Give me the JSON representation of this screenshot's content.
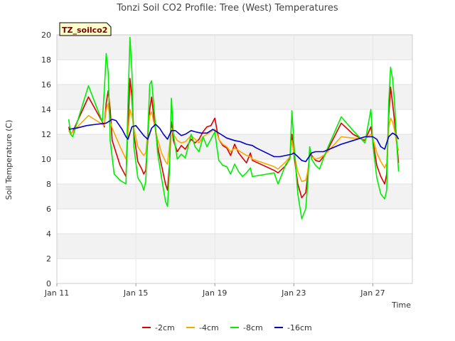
{
  "chart_data": {
    "type": "line",
    "title": "Tonzi Soil CO2 Profile: Tree (West) Temperatures",
    "xlabel": "Time",
    "ylabel": "Soil Temperature (C)",
    "ylim": [
      0,
      20
    ],
    "yticks": [
      0,
      2,
      4,
      6,
      8,
      10,
      12,
      14,
      16,
      18,
      20
    ],
    "xlim": [
      11,
      29
    ],
    "xticks": [
      {
        "value": 11,
        "label": "Jan 11"
      },
      {
        "value": 15,
        "label": "Jan 15"
      },
      {
        "value": 19,
        "label": "Jan 19"
      },
      {
        "value": 23,
        "label": "Jan 23"
      },
      {
        "value": 27,
        "label": "Jan 27"
      }
    ],
    "tag": "TZ_soilco2",
    "grid": "horizontal bands",
    "legend_position": "bottom",
    "series": [
      {
        "name": "-2cm",
        "color": "#dd0000",
        "points": [
          [
            11.6,
            12.6
          ],
          [
            11.7,
            12.0
          ],
          [
            11.8,
            12.2
          ],
          [
            12.6,
            15.0
          ],
          [
            13.3,
            13.0
          ],
          [
            13.4,
            12.6
          ],
          [
            13.5,
            14.5
          ],
          [
            13.6,
            15.5
          ],
          [
            13.7,
            14.0
          ],
          [
            13.8,
            11.5
          ],
          [
            14.2,
            9.5
          ],
          [
            14.5,
            8.6
          ],
          [
            14.6,
            12.5
          ],
          [
            14.7,
            16.5
          ],
          [
            14.8,
            15.0
          ],
          [
            14.9,
            12.0
          ],
          [
            15.1,
            9.8
          ],
          [
            15.3,
            9.2
          ],
          [
            15.4,
            8.8
          ],
          [
            15.5,
            9.1
          ],
          [
            15.6,
            11.5
          ],
          [
            15.7,
            14.0
          ],
          [
            15.8,
            15.0
          ],
          [
            15.9,
            13.5
          ],
          [
            16.1,
            11.0
          ],
          [
            16.3,
            9.5
          ],
          [
            16.5,
            8.0
          ],
          [
            16.6,
            7.5
          ],
          [
            16.7,
            9.5
          ],
          [
            16.8,
            13.0
          ],
          [
            16.9,
            11.5
          ],
          [
            17.1,
            10.6
          ],
          [
            17.3,
            11.1
          ],
          [
            17.5,
            10.8
          ],
          [
            17.8,
            11.6
          ],
          [
            18.0,
            11.3
          ],
          [
            18.2,
            11.6
          ],
          [
            18.4,
            12.2
          ],
          [
            18.6,
            12.6
          ],
          [
            18.8,
            12.7
          ],
          [
            19.0,
            13.3
          ],
          [
            19.1,
            12.4
          ],
          [
            19.2,
            11.6
          ],
          [
            19.4,
            11.1
          ],
          [
            19.6,
            10.9
          ],
          [
            19.8,
            10.3
          ],
          [
            20.0,
            11.2
          ],
          [
            20.2,
            10.5
          ],
          [
            20.4,
            10.1
          ],
          [
            20.6,
            9.7
          ],
          [
            20.8,
            10.5
          ],
          [
            20.9,
            9.9
          ],
          [
            22.0,
            9.1
          ],
          [
            22.2,
            8.9
          ],
          [
            22.6,
            9.5
          ],
          [
            22.8,
            10.1
          ],
          [
            22.9,
            12.0
          ],
          [
            23.0,
            10.4
          ],
          [
            23.2,
            8.0
          ],
          [
            23.4,
            6.9
          ],
          [
            23.6,
            7.3
          ],
          [
            23.7,
            8.6
          ],
          [
            23.8,
            10.6
          ],
          [
            23.9,
            10.3
          ],
          [
            24.1,
            9.9
          ],
          [
            24.3,
            9.8
          ],
          [
            24.6,
            10.4
          ],
          [
            25.4,
            12.9
          ],
          [
            26.0,
            12.0
          ],
          [
            26.6,
            11.5
          ],
          [
            26.9,
            12.6
          ],
          [
            27.0,
            11.5
          ],
          [
            27.2,
            9.5
          ],
          [
            27.4,
            8.6
          ],
          [
            27.6,
            8.0
          ],
          [
            27.7,
            8.8
          ],
          [
            27.8,
            13.5
          ],
          [
            27.9,
            15.8
          ],
          [
            28.0,
            14.5
          ],
          [
            28.1,
            13.0
          ],
          [
            28.2,
            11.5
          ],
          [
            28.3,
            9.7
          ]
        ]
      },
      {
        "name": "-4cm",
        "color": "#ffa500",
        "points": [
          [
            11.6,
            12.3
          ],
          [
            11.7,
            12.0
          ],
          [
            11.8,
            12.2
          ],
          [
            12.6,
            13.5
          ],
          [
            13.3,
            12.8
          ],
          [
            13.4,
            12.7
          ],
          [
            13.5,
            14.0
          ],
          [
            13.6,
            14.5
          ],
          [
            13.7,
            13.0
          ],
          [
            13.8,
            12.5
          ],
          [
            14.2,
            11.0
          ],
          [
            14.5,
            10.0
          ],
          [
            14.6,
            12.0
          ],
          [
            14.7,
            14.0
          ],
          [
            14.8,
            13.5
          ],
          [
            14.9,
            12.5
          ],
          [
            15.1,
            11.0
          ],
          [
            15.3,
            10.5
          ],
          [
            15.4,
            10.3
          ],
          [
            15.5,
            10.5
          ],
          [
            15.6,
            12.0
          ],
          [
            15.7,
            13.5
          ],
          [
            15.8,
            13.8
          ],
          [
            15.9,
            13.0
          ],
          [
            16.1,
            11.6
          ],
          [
            16.3,
            10.5
          ],
          [
            16.5,
            9.8
          ],
          [
            16.6,
            9.6
          ],
          [
            16.7,
            11.0
          ],
          [
            16.8,
            12.5
          ],
          [
            16.9,
            12.0
          ],
          [
            17.1,
            11.5
          ],
          [
            17.3,
            11.3
          ],
          [
            17.5,
            11.4
          ],
          [
            17.8,
            11.9
          ],
          [
            18.0,
            11.6
          ],
          [
            18.2,
            11.3
          ],
          [
            18.4,
            11.8
          ],
          [
            18.6,
            12.0
          ],
          [
            18.8,
            12.2
          ],
          [
            19.0,
            12.4
          ],
          [
            19.1,
            12.1
          ],
          [
            19.2,
            11.6
          ],
          [
            19.4,
            11.2
          ],
          [
            19.6,
            11.0
          ],
          [
            19.8,
            10.6
          ],
          [
            20.0,
            10.9
          ],
          [
            20.2,
            10.7
          ],
          [
            20.4,
            10.5
          ],
          [
            20.6,
            10.3
          ],
          [
            20.8,
            10.2
          ],
          [
            20.9,
            10.0
          ],
          [
            22.0,
            9.4
          ],
          [
            22.2,
            9.2
          ],
          [
            22.6,
            9.8
          ],
          [
            22.8,
            10.2
          ],
          [
            22.9,
            11.5
          ],
          [
            23.0,
            10.5
          ],
          [
            23.2,
            9.0
          ],
          [
            23.4,
            8.2
          ],
          [
            23.6,
            8.3
          ],
          [
            23.7,
            9.0
          ],
          [
            23.8,
            10.3
          ],
          [
            23.9,
            10.2
          ],
          [
            24.1,
            10.0
          ],
          [
            24.3,
            10.1
          ],
          [
            24.6,
            10.4
          ],
          [
            25.4,
            11.8
          ],
          [
            26.0,
            11.7
          ],
          [
            26.6,
            11.6
          ],
          [
            26.9,
            12.0
          ],
          [
            27.0,
            11.7
          ],
          [
            27.2,
            10.5
          ],
          [
            27.4,
            9.8
          ],
          [
            27.6,
            9.3
          ],
          [
            27.7,
            9.7
          ],
          [
            27.8,
            12.5
          ],
          [
            27.9,
            13.3
          ],
          [
            28.0,
            13.0
          ],
          [
            28.1,
            12.3
          ],
          [
            28.2,
            11.3
          ],
          [
            28.3,
            10.7
          ]
        ]
      },
      {
        "name": "-8cm",
        "color": "#00ee00",
        "points": [
          [
            11.6,
            13.2
          ],
          [
            11.7,
            12.0
          ],
          [
            11.8,
            11.8
          ],
          [
            12.6,
            15.9
          ],
          [
            13.3,
            13.0
          ],
          [
            13.4,
            15.5
          ],
          [
            13.5,
            18.5
          ],
          [
            13.6,
            17.0
          ],
          [
            13.7,
            11.5
          ],
          [
            13.9,
            8.8
          ],
          [
            14.2,
            8.3
          ],
          [
            14.5,
            8.0
          ],
          [
            14.6,
            14.5
          ],
          [
            14.7,
            19.8
          ],
          [
            14.8,
            17.0
          ],
          [
            14.9,
            11.0
          ],
          [
            15.1,
            8.5
          ],
          [
            15.3,
            8.0
          ],
          [
            15.4,
            7.5
          ],
          [
            15.5,
            8.2
          ],
          [
            15.6,
            12.0
          ],
          [
            15.7,
            16.0
          ],
          [
            15.8,
            16.3
          ],
          [
            15.9,
            14.5
          ],
          [
            16.1,
            10.5
          ],
          [
            16.3,
            8.5
          ],
          [
            16.5,
            6.6
          ],
          [
            16.6,
            6.2
          ],
          [
            16.7,
            9.0
          ],
          [
            16.8,
            14.9
          ],
          [
            16.9,
            12.0
          ],
          [
            17.1,
            10.0
          ],
          [
            17.3,
            10.4
          ],
          [
            17.5,
            10.1
          ],
          [
            17.8,
            12.0
          ],
          [
            18.0,
            11.0
          ],
          [
            18.2,
            10.6
          ],
          [
            18.4,
            11.8
          ],
          [
            18.6,
            11.0
          ],
          [
            18.8,
            11.6
          ],
          [
            19.0,
            12.2
          ],
          [
            19.1,
            11.0
          ],
          [
            19.2,
            9.9
          ],
          [
            19.4,
            9.5
          ],
          [
            19.6,
            9.4
          ],
          [
            19.8,
            8.8
          ],
          [
            20.0,
            9.6
          ],
          [
            20.2,
            9.0
          ],
          [
            20.4,
            8.6
          ],
          [
            20.6,
            8.9
          ],
          [
            20.8,
            9.3
          ],
          [
            20.9,
            8.6
          ],
          [
            22.0,
            8.9
          ],
          [
            22.2,
            8.0
          ],
          [
            22.6,
            9.6
          ],
          [
            22.8,
            10.0
          ],
          [
            22.9,
            13.9
          ],
          [
            23.0,
            11.3
          ],
          [
            23.2,
            7.2
          ],
          [
            23.4,
            5.2
          ],
          [
            23.6,
            6.0
          ],
          [
            23.7,
            8.0
          ],
          [
            23.8,
            11.0
          ],
          [
            23.9,
            10.0
          ],
          [
            24.1,
            9.5
          ],
          [
            24.3,
            9.2
          ],
          [
            24.6,
            10.5
          ],
          [
            25.4,
            13.4
          ],
          [
            26.0,
            12.3
          ],
          [
            26.6,
            11.3
          ],
          [
            26.9,
            14.0
          ],
          [
            27.0,
            11.2
          ],
          [
            27.2,
            8.5
          ],
          [
            27.4,
            7.2
          ],
          [
            27.6,
            6.8
          ],
          [
            27.7,
            7.5
          ],
          [
            27.8,
            14.5
          ],
          [
            27.9,
            17.4
          ],
          [
            28.0,
            16.5
          ],
          [
            28.1,
            14.5
          ],
          [
            28.2,
            11.5
          ],
          [
            28.3,
            9.0
          ]
        ]
      },
      {
        "name": "-16cm",
        "color": "#0000cc",
        "points": [
          [
            11.6,
            12.4
          ],
          [
            12.0,
            12.5
          ],
          [
            12.5,
            12.7
          ],
          [
            13.0,
            12.8
          ],
          [
            13.5,
            12.9
          ],
          [
            13.8,
            13.2
          ],
          [
            14.0,
            13.1
          ],
          [
            14.3,
            12.4
          ],
          [
            14.5,
            11.8
          ],
          [
            14.6,
            11.6
          ],
          [
            14.8,
            12.6
          ],
          [
            15.0,
            12.7
          ],
          [
            15.2,
            12.3
          ],
          [
            15.4,
            11.9
          ],
          [
            15.6,
            11.6
          ],
          [
            15.8,
            12.5
          ],
          [
            16.0,
            12.8
          ],
          [
            16.2,
            12.5
          ],
          [
            16.4,
            12.0
          ],
          [
            16.6,
            11.6
          ],
          [
            16.8,
            12.3
          ],
          [
            17.0,
            12.3
          ],
          [
            17.3,
            11.9
          ],
          [
            17.5,
            12.0
          ],
          [
            17.8,
            12.3
          ],
          [
            18.0,
            12.2
          ],
          [
            18.3,
            12.1
          ],
          [
            18.6,
            12.1
          ],
          [
            18.9,
            12.4
          ],
          [
            19.0,
            12.3
          ],
          [
            19.3,
            12.0
          ],
          [
            19.6,
            11.7
          ],
          [
            20.0,
            11.5
          ],
          [
            20.3,
            11.4
          ],
          [
            20.6,
            11.2
          ],
          [
            20.9,
            11.1
          ],
          [
            21.1,
            10.9
          ],
          [
            22.0,
            10.2
          ],
          [
            22.3,
            10.2
          ],
          [
            22.9,
            10.4
          ],
          [
            23.0,
            10.5
          ],
          [
            23.2,
            10.2
          ],
          [
            23.4,
            9.9
          ],
          [
            23.6,
            9.8
          ],
          [
            23.9,
            10.5
          ],
          [
            24.1,
            10.6
          ],
          [
            24.5,
            10.6
          ],
          [
            25.4,
            11.2
          ],
          [
            26.0,
            11.5
          ],
          [
            26.6,
            11.8
          ],
          [
            27.0,
            11.8
          ],
          [
            27.2,
            11.6
          ],
          [
            27.4,
            11.0
          ],
          [
            27.6,
            10.8
          ],
          [
            27.8,
            11.8
          ],
          [
            28.0,
            12.1
          ],
          [
            28.2,
            11.9
          ],
          [
            28.3,
            11.6
          ]
        ]
      }
    ]
  }
}
